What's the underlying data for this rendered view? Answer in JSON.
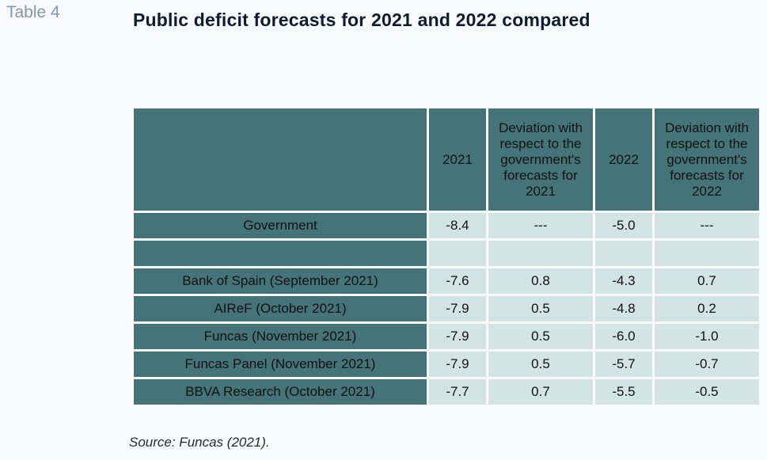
{
  "label": "Table 4",
  "title": "Public deficit forecasts for 2021 and 2022 compared",
  "columns": [
    "",
    "2021",
    "Deviation with respect to the government's forecasts for 2021",
    "2022",
    "Deviation with respect to the government's forecasts for 2022"
  ],
  "rows": [
    {
      "label": "Government",
      "v2021": "-8.4",
      "dev2021": "---",
      "v2022": "-5.0",
      "dev2022": "---"
    },
    {
      "label": "",
      "v2021": "",
      "dev2021": "",
      "v2022": "",
      "dev2022": ""
    },
    {
      "label": "Bank of Spain (September 2021)",
      "v2021": "-7.6",
      "dev2021": "0.8",
      "v2022": "-4.3",
      "dev2022": "0.7"
    },
    {
      "label": "AIReF (October 2021)",
      "v2021": "-7.9",
      "dev2021": "0.5",
      "v2022": "-4.8",
      "dev2022": "0.2"
    },
    {
      "label": "Funcas (November 2021)",
      "v2021": "-7.9",
      "dev2021": "0.5",
      "v2022": "-6.0",
      "dev2022": "-1.0"
    },
    {
      "label": "Funcas Panel (November 2021)",
      "v2021": "-7.9",
      "dev2021": "0.5",
      "v2022": "-5.7",
      "dev2022": "-0.7"
    },
    {
      "label": "BBVA Research (October 2021)",
      "v2021": "-7.7",
      "dev2021": "0.7",
      "v2022": "-5.5",
      "dev2022": "-0.5"
    }
  ],
  "source": "Source: Funcas (2021)."
}
